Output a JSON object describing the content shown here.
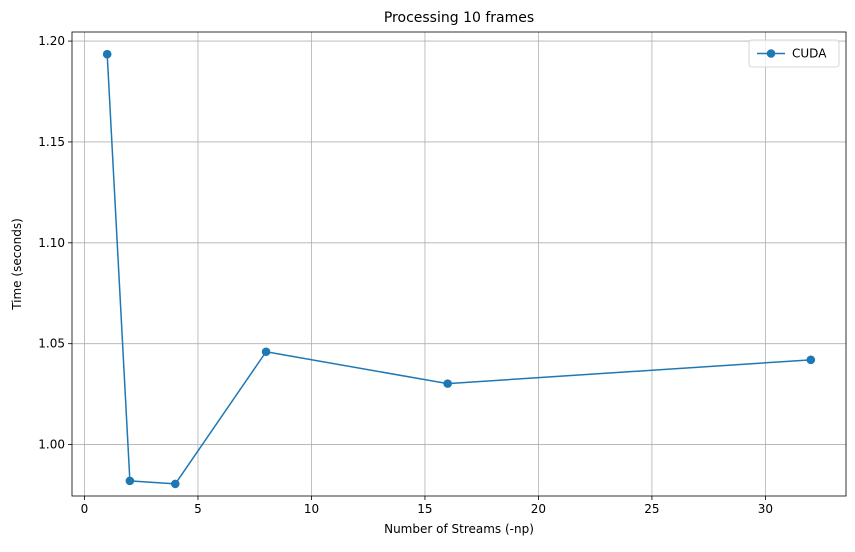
{
  "chart_data": {
    "type": "line",
    "title": "Processing 10 frames",
    "xlabel": "Number of Streams (-np)",
    "ylabel": "Time (seconds)",
    "xlim": [
      -0.55,
      33.55
    ],
    "ylim": [
      0.9745,
      1.2045
    ],
    "xticks": [
      0,
      5,
      10,
      15,
      20,
      25,
      30
    ],
    "yticks": [
      1.0,
      1.05,
      1.1,
      1.15,
      1.2
    ],
    "xtick_labels": [
      "0",
      "5",
      "10",
      "15",
      "20",
      "25",
      "30"
    ],
    "ytick_labels": [
      "1.00",
      "1.05",
      "1.10",
      "1.15",
      "1.20"
    ],
    "grid": true,
    "legend_position": "top-right",
    "series": [
      {
        "name": "CUDA",
        "color": "#1f77b4",
        "marker": "circle",
        "x": [
          1,
          2,
          4,
          8,
          16,
          32
        ],
        "y": [
          1.1935,
          0.982,
          0.9805,
          1.046,
          1.0302,
          1.042
        ]
      }
    ]
  }
}
